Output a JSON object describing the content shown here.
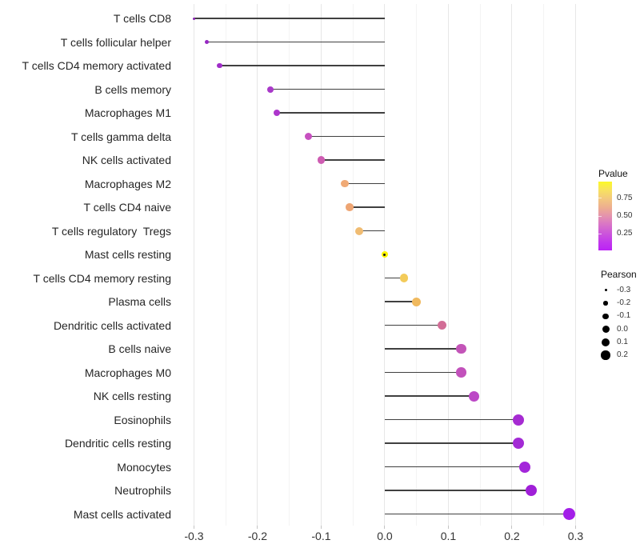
{
  "chart_data": {
    "type": "lollipop",
    "title": "",
    "xlabel": "",
    "ylabel": "",
    "grid": "vertical-only",
    "xlim": [
      -0.3295,
      0.3195
    ],
    "x_ticks": [
      -0.3,
      -0.2,
      -0.1,
      0.0,
      0.1,
      0.2,
      0.3
    ],
    "x_tick_labels": [
      "-0.3",
      "-0.2",
      "-0.1",
      "0.0",
      "0.1",
      "0.2",
      "0.3"
    ],
    "x_minor_ticks": [
      -0.25,
      -0.15,
      -0.05,
      0.05,
      0.15,
      0.25
    ],
    "rows": [
      {
        "label": "T cells CD8",
        "pearson": -0.3,
        "pvalue_approx": 0.005,
        "color": "#8e24b8",
        "size": 3
      },
      {
        "label": "T cells follicular helper",
        "pearson": -0.28,
        "pvalue_approx": 0.01,
        "color": "#9627c2",
        "size": 5
      },
      {
        "label": "T cells CD4 memory activated",
        "pearson": -0.26,
        "pvalue_approx": 0.02,
        "color": "#a02cc8",
        "size": 6.5
      },
      {
        "label": "B cells memory",
        "pearson": -0.18,
        "pvalue_approx": 0.05,
        "color": "#a939c9",
        "size": 8
      },
      {
        "label": "Macrophages M1",
        "pearson": -0.17,
        "pvalue_approx": 0.06,
        "color": "#ad36cc",
        "size": 8.5
      },
      {
        "label": "T cells gamma delta",
        "pearson": -0.12,
        "pvalue_approx": 0.22,
        "color": "#c750c0",
        "size": 9.5
      },
      {
        "label": "NK cells activated",
        "pearson": -0.1,
        "pvalue_approx": 0.3,
        "color": "#ce5cb2",
        "size": 9.5
      },
      {
        "label": "Macrophages M2",
        "pearson": -0.063,
        "pvalue_approx": 0.65,
        "color": "#f0aa76",
        "size": 9.5
      },
      {
        "label": "T cells CD4 naive",
        "pearson": -0.055,
        "pvalue_approx": 0.63,
        "color": "#eea573",
        "size": 9.5
      },
      {
        "label": "T cells regulatory  Tregs",
        "pearson": -0.04,
        "pvalue_approx": 0.72,
        "color": "#f0bc72",
        "size": 10
      },
      {
        "label": "Mast cells resting",
        "pearson": 0.0,
        "pvalue_approx": 0.97,
        "color": "#fdf500",
        "size": 8,
        "center_dot": true
      },
      {
        "label": "T cells CD4 memory resting",
        "pearson": 0.03,
        "pvalue_approx": 0.8,
        "color": "#f3cb5a",
        "size": 10.5
      },
      {
        "label": "Plasma cells",
        "pearson": 0.05,
        "pvalue_approx": 0.75,
        "color": "#f0b95e",
        "size": 11
      },
      {
        "label": "Dendritic cells activated",
        "pearson": 0.09,
        "pvalue_approx": 0.45,
        "color": "#d26d96",
        "size": 11.5
      },
      {
        "label": "B cells naive",
        "pearson": 0.12,
        "pvalue_approx": 0.28,
        "color": "#c354b8",
        "size": 12.5
      },
      {
        "label": "Macrophages M0",
        "pearson": 0.12,
        "pvalue_approx": 0.28,
        "color": "#c251bb",
        "size": 12.5
      },
      {
        "label": "NK cells resting",
        "pearson": 0.14,
        "pvalue_approx": 0.22,
        "color": "#bc48c6",
        "size": 13
      },
      {
        "label": "Eosinophils",
        "pearson": 0.21,
        "pvalue_approx": 0.08,
        "color": "#a62bd2",
        "size": 14
      },
      {
        "label": "Dendritic cells resting",
        "pearson": 0.21,
        "pvalue_approx": 0.07,
        "color": "#a32ad5",
        "size": 14
      },
      {
        "label": "Monocytes",
        "pearson": 0.22,
        "pvalue_approx": 0.06,
        "color": "#a326da",
        "size": 14
      },
      {
        "label": "Neutrophils",
        "pearson": 0.23,
        "pvalue_approx": 0.05,
        "color": "#a01fd8",
        "size": 14.5
      },
      {
        "label": "Mast cells activated",
        "pearson": 0.29,
        "pvalue_approx": 0.03,
        "color": "#a31fe8",
        "size": 15.5
      }
    ],
    "legend_pvalue": {
      "title": "Pvalue",
      "ticks": [
        {
          "label": "0.75",
          "value": 0.75
        },
        {
          "label": "0.50",
          "value": 0.5
        },
        {
          "label": "0.25",
          "value": 0.25
        }
      ],
      "bar_value_range": [
        0.98,
        0.02
      ],
      "gradient": [
        {
          "color": "#fcf926",
          "pos": 0
        },
        {
          "color": "#f8e25f",
          "pos": 12
        },
        {
          "color": "#f3c87e",
          "pos": 25
        },
        {
          "color": "#edad90",
          "pos": 38
        },
        {
          "color": "#e492ae",
          "pos": 50
        },
        {
          "color": "#d975c6",
          "pos": 62
        },
        {
          "color": "#cc56da",
          "pos": 75
        },
        {
          "color": "#c238ec",
          "pos": 88
        },
        {
          "color": "#bb22f5",
          "pos": 100
        }
      ]
    },
    "legend_pearson": {
      "title": "Pearson",
      "items": [
        {
          "label": "-0.3",
          "diameter": 3
        },
        {
          "label": "-0.2",
          "diameter": 5.5
        },
        {
          "label": "-0.1",
          "diameter": 7.5
        },
        {
          "label": "0.0",
          "diameter": 9
        },
        {
          "label": "0.1",
          "diameter": 10
        },
        {
          "label": "0.2",
          "diameter": 11.5
        }
      ]
    },
    "colors": {
      "stem": "#404040",
      "grid_major": "#e7e7e7",
      "grid_minor": "#f4f4f4",
      "axis_tick": "#c4c4c4",
      "axis_text": "#333333",
      "category_text": "#262626",
      "background": "#ffffff"
    }
  }
}
